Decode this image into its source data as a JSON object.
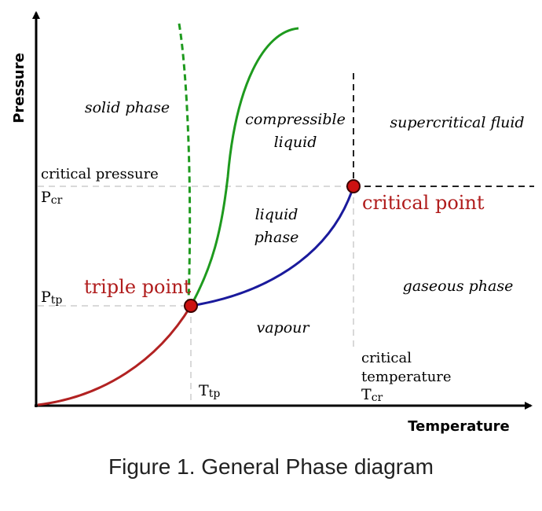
{
  "axes": {
    "y_label": "Pressure",
    "x_label": "Temperature"
  },
  "regions": {
    "solid": "solid phase",
    "compressible_line1": "compressible",
    "compressible_line2": "liquid",
    "supercritical": "supercritical fluid",
    "liquid_line1": "liquid",
    "liquid_line2": "phase",
    "gaseous": "gaseous phase",
    "vapour": "vapour"
  },
  "points": {
    "triple": "triple point",
    "critical": "critical point"
  },
  "pressure_labels": {
    "critical_pressure": "critical pressure",
    "pcr": "P",
    "pcr_sub": "cr",
    "ptp": "P",
    "ptp_sub": "tp"
  },
  "temperature_labels": {
    "ttp": "T",
    "ttp_sub": "tp",
    "critical_line1": "critical",
    "critical_line2": "temperature",
    "tcr": "T",
    "tcr_sub": "cr"
  },
  "caption": "Figure 1. General Phase diagram",
  "colors": {
    "sublimation_curve": "#b22222",
    "vaporization_curve": "#1a1a9c",
    "fusion_curve": "#1e9a1e",
    "point_fill": "#cc1111",
    "point_label": "#b01c1c",
    "guide_dash": "#d9d9d9"
  }
}
